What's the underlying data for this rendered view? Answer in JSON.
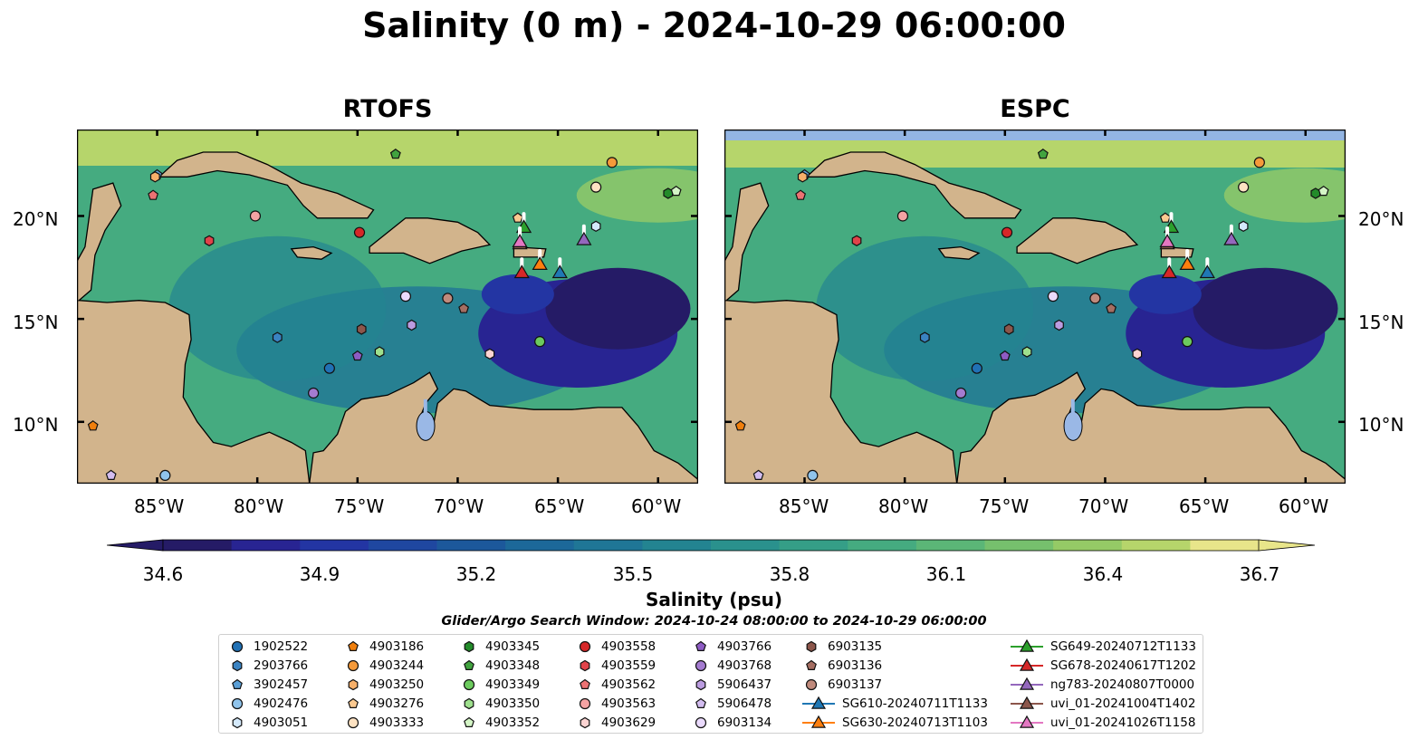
{
  "title": "Salinity (0 m) - 2024-10-29 06:00:00",
  "panels": [
    {
      "title": "RTOFS"
    },
    {
      "title": "ESPC"
    }
  ],
  "map_extent": {
    "lon": [
      -89,
      -58
    ],
    "lat": [
      7,
      24.2
    ]
  },
  "x_ticks": [
    "85°W",
    "80°W",
    "75°W",
    "70°W",
    "65°W",
    "60°W"
  ],
  "y_ticks": [
    "20°N",
    "15°N",
    "10°N"
  ],
  "colorbar": {
    "label": "Salinity (psu)",
    "ticks": [
      "34.6",
      "34.9",
      "35.2",
      "35.5",
      "35.8",
      "36.1",
      "36.4",
      "36.7"
    ],
    "range": [
      34.6,
      36.7
    ],
    "colors": [
      "#251b66",
      "#282492",
      "#2335a3",
      "#1f47a0",
      "#1c589b",
      "#1c6899",
      "#1f7696",
      "#238491",
      "#2a918d",
      "#359e87",
      "#45ab80",
      "#5bb677",
      "#76c06d",
      "#95ca66",
      "#b6d56b",
      "#e8e58a"
    ]
  },
  "search_window": "Glider/Argo Search Window: 2024-10-24 08:00:00 to 2024-10-29 06:00:00",
  "legend": {
    "columns": [
      [
        {
          "label": "1902522",
          "shape": "circle",
          "color": "#2171b5"
        },
        {
          "label": "2903766",
          "shape": "hexagon",
          "color": "#3a83c2"
        },
        {
          "label": "3902457",
          "shape": "pentagon",
          "color": "#5a9fd6"
        },
        {
          "label": "4902476",
          "shape": "circle",
          "color": "#90c4ec"
        },
        {
          "label": "4903051",
          "shape": "hexagon",
          "color": "#d4e9fb"
        }
      ],
      [
        {
          "label": "4903186",
          "shape": "pentagon",
          "color": "#f07f0c"
        },
        {
          "label": "4903244",
          "shape": "circle",
          "color": "#f59a3a"
        },
        {
          "label": "4903250",
          "shape": "hexagon",
          "color": "#f7b06a"
        },
        {
          "label": "4903276",
          "shape": "pentagon",
          "color": "#fbc990"
        },
        {
          "label": "4903333",
          "shape": "circle",
          "color": "#fde2c2"
        }
      ],
      [
        {
          "label": "4903345",
          "shape": "hexagon",
          "color": "#238b2a"
        },
        {
          "label": "4903348",
          "shape": "pentagon",
          "color": "#41a33f"
        },
        {
          "label": "4903349",
          "shape": "circle",
          "color": "#6ccb5e"
        },
        {
          "label": "4903350",
          "shape": "hexagon",
          "color": "#9ee08d"
        },
        {
          "label": "4903352",
          "shape": "pentagon",
          "color": "#d4f5c6"
        }
      ],
      [
        {
          "label": "4903558",
          "shape": "circle",
          "color": "#d62728"
        },
        {
          "label": "4903559",
          "shape": "hexagon",
          "color": "#e1434a"
        },
        {
          "label": "4903562",
          "shape": "pentagon",
          "color": "#ec7273"
        },
        {
          "label": "4903563",
          "shape": "circle",
          "color": "#f4a3a3"
        },
        {
          "label": "4903629",
          "shape": "hexagon",
          "color": "#fcd4d2"
        }
      ],
      [
        {
          "label": "4903766",
          "shape": "pentagon",
          "color": "#8e5cc4"
        },
        {
          "label": "4903768",
          "shape": "circle",
          "color": "#a47bd0"
        },
        {
          "label": "5906437",
          "shape": "hexagon",
          "color": "#bb9ce0"
        },
        {
          "label": "5906478",
          "shape": "pentagon",
          "color": "#d3bdf0"
        },
        {
          "label": "6903134",
          "shape": "circle",
          "color": "#eadafc"
        }
      ],
      [
        {
          "label": "6903135",
          "shape": "hexagon",
          "color": "#8c564b"
        },
        {
          "label": "6903136",
          "shape": "pentagon",
          "color": "#a56e62"
        },
        {
          "label": "6903137",
          "shape": "circle",
          "color": "#c08a7c"
        },
        {
          "label": "SG610-20240711T1133",
          "shape": "triangle",
          "color": "#1f77b4",
          "line": true
        },
        {
          "label": "SG630-20240713T1103",
          "shape": "triangle",
          "color": "#ff7f0e",
          "line": true
        }
      ],
      [
        {
          "label": "SG649-20240712T1133",
          "shape": "triangle",
          "color": "#2ca02c",
          "line": true
        },
        {
          "label": "SG678-20240617T1202",
          "shape": "triangle",
          "color": "#d62728",
          "line": true
        },
        {
          "label": "ng783-20240807T0000",
          "shape": "triangle",
          "color": "#9467bd",
          "line": true
        },
        {
          "label": "uvi_01-20241004T1402",
          "shape": "triangle",
          "color": "#8c564b",
          "line": true
        },
        {
          "label": "uvi_01-20241026T1158",
          "shape": "triangle",
          "color": "#e377c2",
          "line": true
        }
      ]
    ]
  },
  "floats": [
    {
      "id": "1902522",
      "lon": -76.4,
      "lat": 12.6
    },
    {
      "id": "2903766",
      "lon": -79.0,
      "lat": 14.1
    },
    {
      "id": "3902457",
      "lon": -85.0,
      "lat": 22.0
    },
    {
      "id": "4902476",
      "lon": -84.6,
      "lat": 7.4
    },
    {
      "id": "4903051",
      "lon": -63.1,
      "lat": 19.5
    },
    {
      "id": "4903186",
      "lon": -88.2,
      "lat": 9.8
    },
    {
      "id": "4903244",
      "lon": -62.3,
      "lat": 22.6
    },
    {
      "id": "4903250",
      "lon": -85.1,
      "lat": 21.9
    },
    {
      "id": "4903276",
      "lon": -67.0,
      "lat": 19.9
    },
    {
      "id": "4903333",
      "lon": -63.1,
      "lat": 21.4
    },
    {
      "id": "4903345",
      "lon": -59.5,
      "lat": 21.1
    },
    {
      "id": "4903348",
      "lon": -73.1,
      "lat": 23.0
    },
    {
      "id": "4903349",
      "lon": -65.9,
      "lat": 13.9
    },
    {
      "id": "4903350",
      "lon": -73.9,
      "lat": 13.4
    },
    {
      "id": "4903352",
      "lon": -59.1,
      "lat": 21.2
    },
    {
      "id": "4903558",
      "lon": -74.9,
      "lat": 19.2
    },
    {
      "id": "4903559",
      "lon": -82.4,
      "lat": 18.8
    },
    {
      "id": "4903562",
      "lon": -85.2,
      "lat": 21.0
    },
    {
      "id": "4903563",
      "lon": -80.1,
      "lat": 20.0
    },
    {
      "id": "4903629",
      "lon": -68.4,
      "lat": 13.3
    },
    {
      "id": "4903766",
      "lon": -75.0,
      "lat": 13.2
    },
    {
      "id": "4903768",
      "lon": -77.2,
      "lat": 11.4
    },
    {
      "id": "5906437",
      "lon": -72.3,
      "lat": 14.7
    },
    {
      "id": "5906478",
      "lon": -87.3,
      "lat": 7.4
    },
    {
      "id": "6903134",
      "lon": -72.6,
      "lat": 16.1
    },
    {
      "id": "6903135",
      "lon": -74.8,
      "lat": 14.5
    },
    {
      "id": "6903136",
      "lon": -69.7,
      "lat": 15.5
    },
    {
      "id": "6903137",
      "lon": -70.5,
      "lat": 16.0
    }
  ],
  "gliders": [
    {
      "id": "SG610-20240711T1133",
      "lon": -64.9,
      "lat": 17.2
    },
    {
      "id": "SG630-20240713T1103",
      "lon": -65.9,
      "lat": 17.6
    },
    {
      "id": "SG649-20240712T1133",
      "lon": -66.7,
      "lat": 19.4
    },
    {
      "id": "SG678-20240617T1202",
      "lon": -66.8,
      "lat": 17.2
    },
    {
      "id": "ng783-20240807T0000",
      "lon": -63.7,
      "lat": 18.8
    },
    {
      "id": "uvi_01-20241004T1402",
      "lon": -66.9,
      "lat": 18.6
    },
    {
      "id": "uvi_01-20241026T1158",
      "lon": -66.9,
      "lat": 18.7
    }
  ]
}
